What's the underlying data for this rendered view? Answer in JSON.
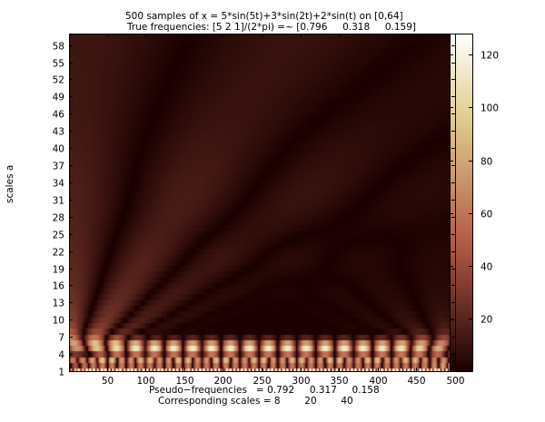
{
  "chart_data": {
    "type": "heatmap",
    "title_line1": "500 samples of x = 5*sin(5t)+3*sin(2t)+2*sin(t) on [0,64]",
    "title_line2": "True frequencies: [5 2 1]/(2*pi) =~ [0.796     0.318     0.159]",
    "xlabel_line1": "Pseudo−frequencies   = 0.792     0.317     0.158",
    "xlabel_line2": "Corresponding scales = 8        20        40",
    "ylabel": "scales a",
    "xlim": [
      1,
      500
    ],
    "ylim": [
      1,
      60
    ],
    "x_ticks": [
      50,
      100,
      150,
      200,
      250,
      300,
      350,
      400,
      450,
      500
    ],
    "y_ticks": [
      1,
      4,
      7,
      10,
      13,
      16,
      19,
      22,
      25,
      28,
      31,
      34,
      37,
      40,
      43,
      46,
      49,
      52,
      55,
      58
    ],
    "colorbar": {
      "range": [
        0,
        128
      ],
      "ticks": [
        20,
        40,
        60,
        80,
        100,
        120
      ],
      "colormap": "pink"
    },
    "signal": {
      "components": [
        {
          "amplitude": 5,
          "omega": 5,
          "pseudo_frequency": 0.792,
          "scale": 8
        },
        {
          "amplitude": 3,
          "omega": 2,
          "pseudo_frequency": 0.317,
          "scale": 20
        },
        {
          "amplitude": 2,
          "omega": 1,
          "pseudo_frequency": 0.158,
          "scale": 40
        }
      ],
      "samples": 500,
      "t_range": [
        0,
        64
      ]
    }
  }
}
